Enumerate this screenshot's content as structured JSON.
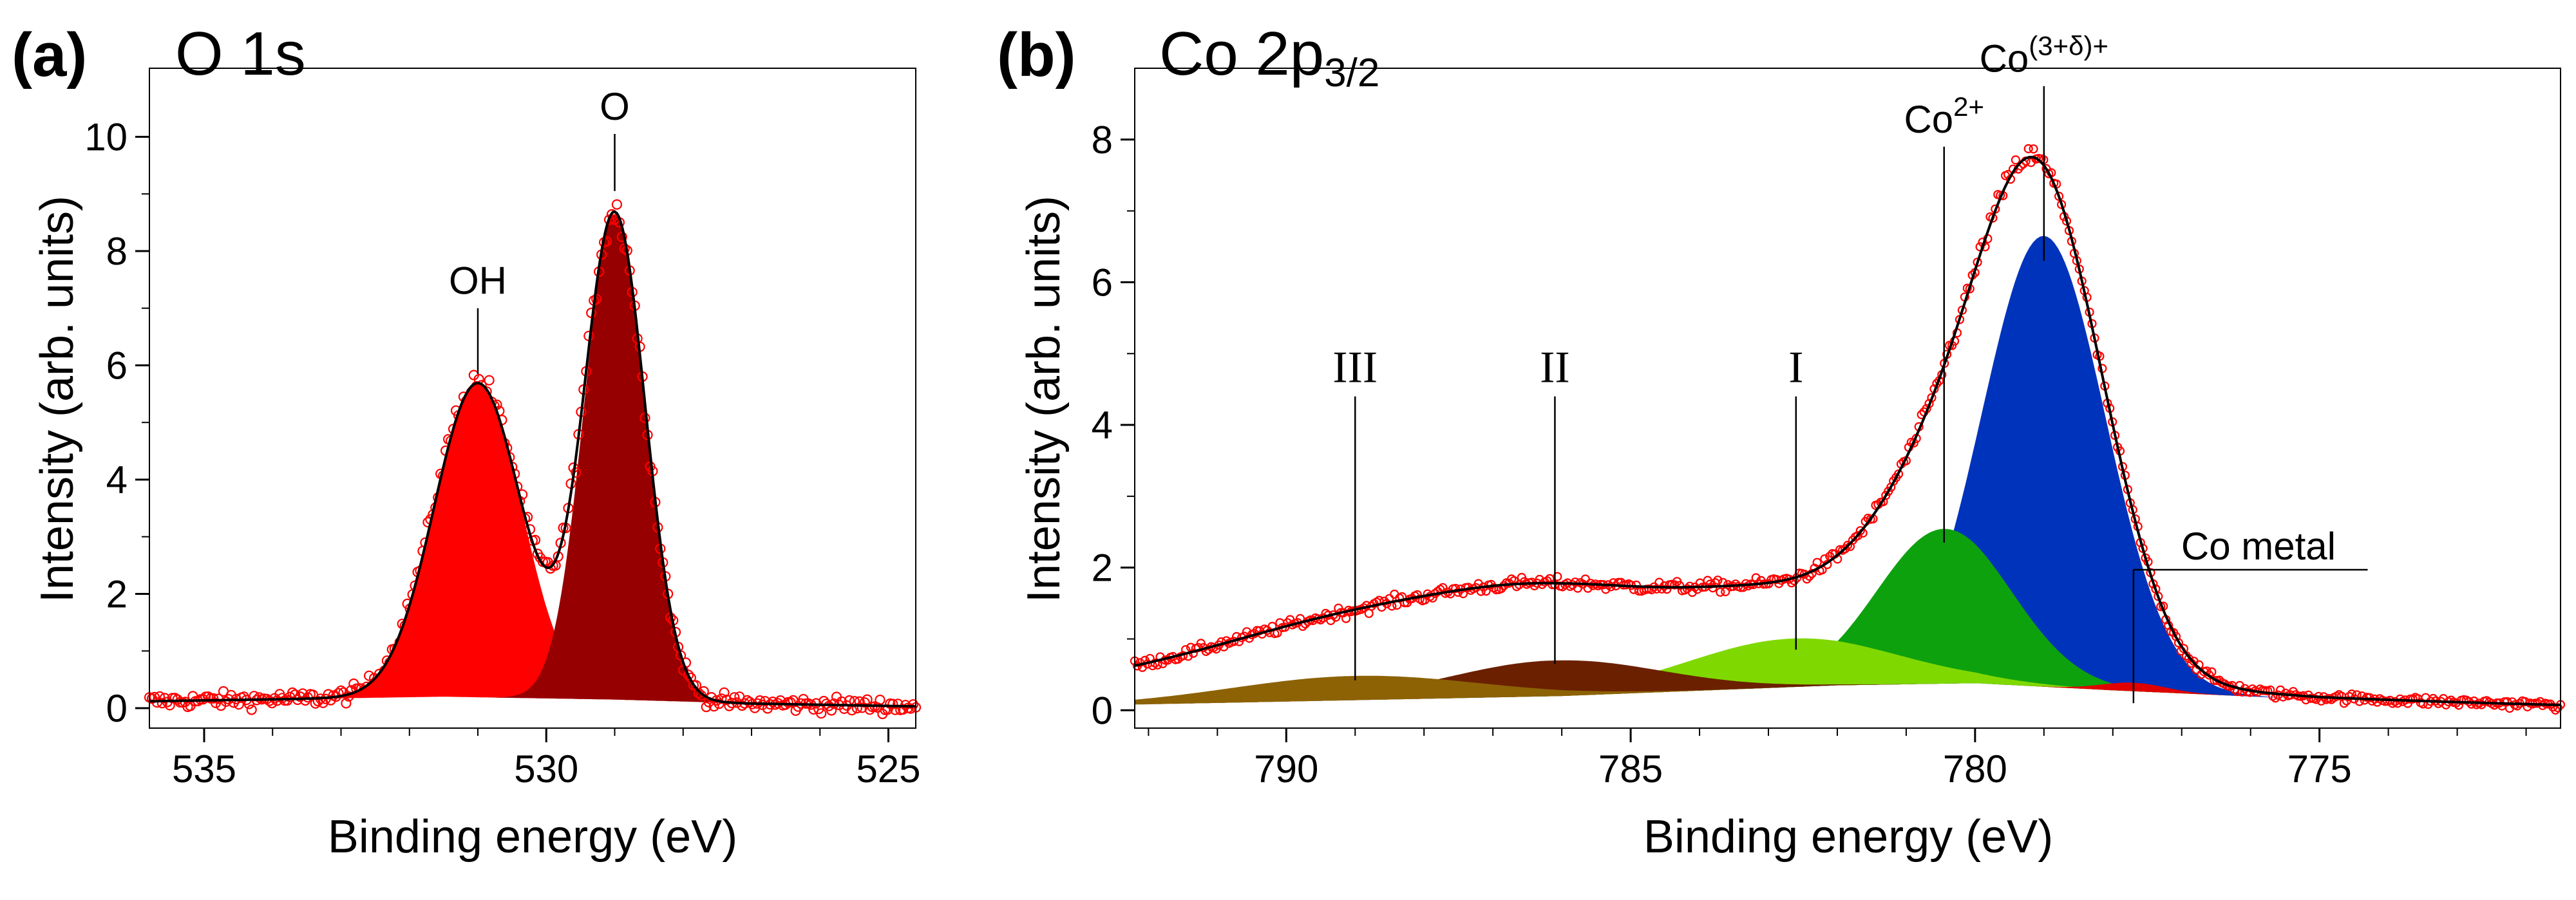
{
  "chart_data": [
    {
      "type": "area",
      "panel_label": "(a)",
      "title": "O 1s",
      "xlabel": "Binding energy (eV)",
      "ylabel": "Intensity (arb. units)",
      "xlim": [
        535.8,
        524.6
      ],
      "ylim": [
        -0.35,
        11.2
      ],
      "x_ticks": [
        535,
        530,
        525
      ],
      "x_tick_labels": [
        "535",
        "530",
        "525"
      ],
      "y_ticks": [
        0,
        2,
        4,
        6,
        8,
        10
      ],
      "y_tick_labels": [
        "0",
        "2",
        "4",
        "6",
        "8",
        "10"
      ],
      "background": {
        "x": [
          535.8,
          531.5,
          529.0,
          527.0,
          524.6
        ],
        "y": [
          0.12,
          0.2,
          0.15,
          0.08,
          0.03
        ]
      },
      "components": [
        {
          "name": "OH",
          "center": 531.0,
          "height": 5.5,
          "fwhm": 1.5,
          "color": "#ff0000"
        },
        {
          "name": "O",
          "center": 529.0,
          "height": 8.5,
          "fwhm": 1.05,
          "color": "#960000"
        }
      ],
      "annotations": [
        {
          "text": "OH",
          "x": 531.0,
          "y_top": 7.0,
          "y_bottom": 5.85
        },
        {
          "text": "O",
          "x": 529.0,
          "y_top": 10.05,
          "y_bottom": 9.05
        }
      ],
      "data_color": "#ff0000",
      "fit_color": "#000000"
    },
    {
      "type": "area",
      "panel_label": "(b)",
      "title": "Co 2p",
      "title_sub": "3/2",
      "xlabel": "Binding energy (eV)",
      "ylabel": "Intensity (arb. units)",
      "xlim": [
        792.2,
        771.5
      ],
      "ylim": [
        -0.25,
        9.0
      ],
      "x_ticks": [
        790,
        785,
        780,
        775
      ],
      "x_tick_labels": [
        "790",
        "785",
        "780",
        "775"
      ],
      "y_ticks": [
        0,
        2,
        4,
        6,
        8
      ],
      "y_tick_labels": [
        "0",
        "2",
        "4",
        "6",
        "8"
      ],
      "background": {
        "x": [
          792.2,
          786.0,
          782.0,
          780.0,
          778.0,
          775.0,
          771.5
        ],
        "y": [
          0.08,
          0.2,
          0.35,
          0.38,
          0.28,
          0.15,
          0.07
        ]
      },
      "components": [
        {
          "name": "Co(3+δ)+",
          "center": 779.0,
          "height": 6.32,
          "fwhm": 2.1,
          "color": "#0033bb"
        },
        {
          "name": "Co2+",
          "center": 780.45,
          "height": 2.17,
          "fwhm": 2.3,
          "color": "#0ea10e"
        },
        {
          "name": "I",
          "center": 782.65,
          "height": 0.68,
          "fwhm": 3.6,
          "color": "#7fd800"
        },
        {
          "name": "II",
          "center": 786.1,
          "height": 0.5,
          "fwhm": 3.6,
          "color": "#6b2000"
        },
        {
          "name": "III",
          "center": 789.0,
          "height": 0.34,
          "fwhm": 4.2,
          "color": "#8c6205"
        },
        {
          "name": "Co metal",
          "center": 777.7,
          "height": 0.12,
          "fwhm": 1.1,
          "color": "#e00000"
        }
      ],
      "annotations": [
        {
          "text": "III",
          "x": 789.0,
          "y_top": 4.4,
          "y_bottom": 0.42,
          "font": "serif"
        },
        {
          "text": "II",
          "x": 786.1,
          "y_top": 4.4,
          "y_bottom": 0.65,
          "font": "serif"
        },
        {
          "text": "I",
          "x": 782.6,
          "y_top": 4.4,
          "y_bottom": 0.85,
          "font": "serif"
        },
        {
          "text": "Co",
          "sup": "2+",
          "x": 780.45,
          "y_top": 7.9,
          "y_bottom": 2.35
        },
        {
          "text": "Co",
          "sup": "(3+δ)+",
          "x": 779.0,
          "y_top": 8.75,
          "y_bottom": 6.3
        },
        {
          "text": "Co metal",
          "x": 777.7,
          "y_top": 1.97,
          "y_bottom": 0.1,
          "underlined": true,
          "to_x": 774.3
        }
      ],
      "data_color": "#ff0000",
      "fit_color": "#000000"
    }
  ]
}
